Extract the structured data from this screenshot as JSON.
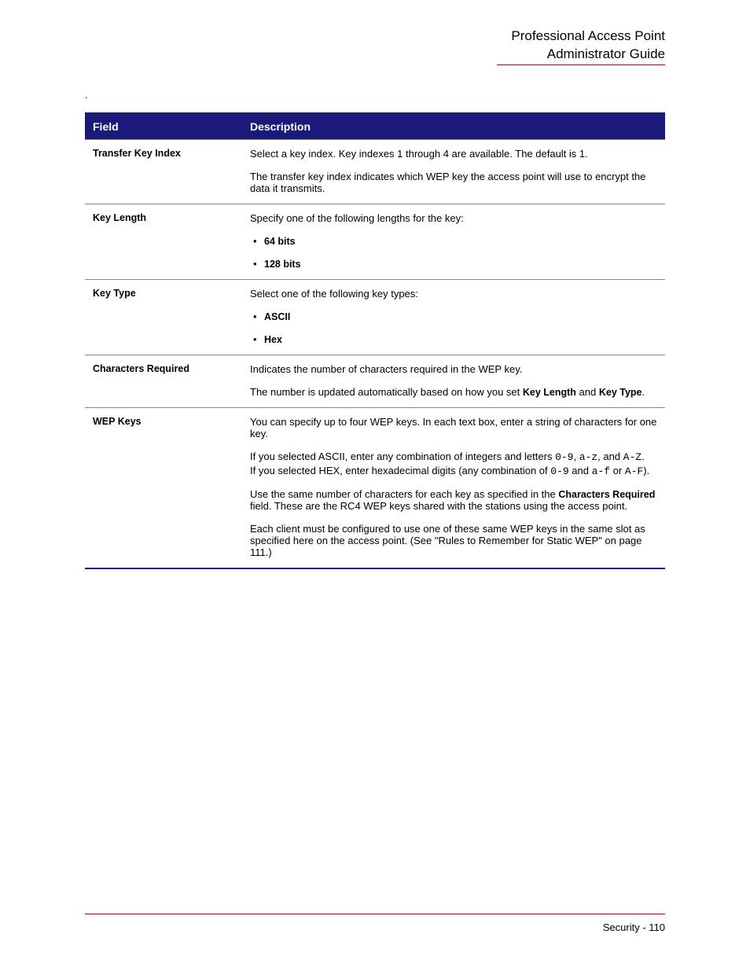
{
  "header": {
    "line1": "Professional Access Point",
    "line2": "Administrator Guide"
  },
  "table": {
    "columns": [
      "Field",
      "Description"
    ],
    "header_bg": "#1a1a7a",
    "header_fg": "#ffffff",
    "border_color": "#888888",
    "rows": [
      {
        "field": "Transfer Key Index",
        "desc": {
          "p1": "Select a key index. Key indexes 1 through 4 are available. The default is 1.",
          "p2": "The transfer key index indicates which WEP key the access point will use to encrypt the data it transmits."
        }
      },
      {
        "field": "Key Length",
        "desc": {
          "p1": "Specify one of the following lengths for the key:",
          "b1": "64 bits",
          "b2": "128 bits"
        }
      },
      {
        "field": "Key Type",
        "desc": {
          "p1": "Select one of the following key types:",
          "b1": "ASCII",
          "b2": "Hex"
        }
      },
      {
        "field": "Characters Required",
        "desc": {
          "p1": "Indicates the number of characters required in the WEP key.",
          "p2a": "The number is updated automatically based on how you set ",
          "p2b": "Key Length",
          "p2c": " and ",
          "p2d": "Key Type",
          "p2e": "."
        }
      },
      {
        "field": "WEP Keys",
        "desc": {
          "p1": "You can specify up to four WEP keys. In each text box, enter a string of characters for one key.",
          "p2a": "If you selected ASCII, enter any combination of integers and letters ",
          "p2b": "0-9",
          "p2c": ", ",
          "p2d": "a-z",
          "p2e": ", and ",
          "p2f": "A-Z",
          "p2g": ".",
          "p3a": "If you selected HEX, enter hexadecimal digits (any combination of ",
          "p3b": "0-9",
          "p3c": " and ",
          "p3d": "a-f",
          "p3e": " or ",
          "p3f": "A-F",
          "p3g": ").",
          "p4a": "Use the same number of characters for each key as specified in the ",
          "p4b": "Characters Required",
          "p4c": " field. These are the RC4 WEP keys shared with the stations using the access point.",
          "p5": "Each client must be configured to use one of these same WEP keys in the same slot as specified here on the access point. (See \"Rules to Remember for Static WEP\" on page 111.)"
        }
      }
    ]
  },
  "footer": {
    "section": "Security",
    "separator": " - ",
    "page": "110"
  },
  "colors": {
    "rule": "#cc0000",
    "text": "#000000"
  }
}
